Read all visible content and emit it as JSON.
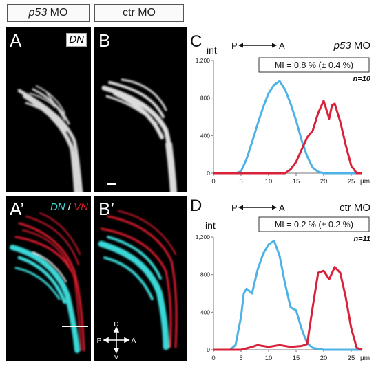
{
  "col_headers": {
    "left_prefix": "p53",
    "left_suffix": " MO",
    "right": "ctr MO"
  },
  "micrographs": {
    "A": {
      "label": "A",
      "tag": "DN"
    },
    "B": {
      "label": "B"
    },
    "A2": {
      "label": "A’",
      "tag1": "DN",
      "tag_sep": " / ",
      "tag2": "VN"
    },
    "B2": {
      "label": "B’"
    },
    "compass": {
      "d": "D",
      "v": "V",
      "p": "P",
      "a": "A"
    },
    "colors": {
      "dn": "#3ad7d7",
      "vn": "#e01a2e",
      "gray": "#d8d8d8"
    }
  },
  "chart_data": [
    {
      "type": "line",
      "panel_letter": "C",
      "ylabel": "int",
      "axis_arrow": {
        "left": "P",
        "right": "A"
      },
      "condition_prefix": "p53",
      "condition_suffix": " MO",
      "mi_text": "MI = 0.8 % (± 0.4 %)",
      "n_text": "n=10",
      "xlabel": "μm",
      "xlim": [
        0,
        27
      ],
      "ylim": [
        0,
        1200
      ],
      "x_ticks": [
        "0",
        "5",
        "10",
        "15",
        "20",
        "25"
      ],
      "y_ticks": [
        "0",
        "400",
        "800",
        "1,200"
      ],
      "series": [
        {
          "color": "#4db2e6",
          "x": [
            0,
            4,
            5,
            6,
            7,
            8,
            9,
            10,
            11,
            12,
            13,
            14,
            15,
            16,
            17,
            18,
            19,
            20,
            27
          ],
          "y": [
            0,
            0,
            20,
            150,
            330,
            520,
            700,
            850,
            940,
            980,
            890,
            740,
            560,
            350,
            180,
            60,
            15,
            0,
            0
          ]
        },
        {
          "color": "#d8223a",
          "x": [
            0,
            7,
            13,
            14,
            15,
            16,
            17,
            18,
            19,
            20,
            21,
            21.5,
            22,
            23,
            24,
            25,
            26,
            27
          ],
          "y": [
            0,
            0,
            0,
            40,
            120,
            250,
            380,
            450,
            640,
            770,
            580,
            720,
            740,
            550,
            300,
            80,
            0,
            0
          ]
        }
      ]
    },
    {
      "type": "line",
      "panel_letter": "D",
      "ylabel": "int",
      "axis_arrow": {
        "left": "P",
        "right": "A"
      },
      "condition_prefix": "",
      "condition_suffix": "ctr MO",
      "mi_text": "MI = 0.2 % (± 0.2 %)",
      "n_text": "n=11",
      "xlabel": "μm",
      "xlim": [
        0,
        27
      ],
      "ylim": [
        0,
        1200
      ],
      "x_ticks": [
        "0",
        "5",
        "10",
        "15",
        "20",
        "25"
      ],
      "y_ticks": [
        "0",
        "400",
        "800",
        "1,200"
      ],
      "series": [
        {
          "color": "#4db2e6",
          "x": [
            0,
            3,
            4,
            5,
            5.5,
            6,
            7,
            8,
            9,
            10,
            11,
            12,
            13,
            14,
            15,
            16,
            17,
            18,
            20,
            27
          ],
          "y": [
            0,
            0,
            50,
            350,
            600,
            650,
            600,
            850,
            1020,
            1120,
            1160,
            1000,
            700,
            450,
            420,
            220,
            70,
            20,
            0,
            0
          ]
        },
        {
          "color": "#d8223a",
          "x": [
            0,
            5,
            7,
            8,
            10,
            12,
            14,
            16,
            17,
            18,
            19,
            20,
            21,
            22,
            23,
            24,
            25,
            26,
            27
          ],
          "y": [
            0,
            0,
            30,
            50,
            30,
            50,
            30,
            40,
            60,
            450,
            820,
            840,
            750,
            880,
            820,
            560,
            230,
            20,
            0
          ]
        }
      ]
    }
  ]
}
